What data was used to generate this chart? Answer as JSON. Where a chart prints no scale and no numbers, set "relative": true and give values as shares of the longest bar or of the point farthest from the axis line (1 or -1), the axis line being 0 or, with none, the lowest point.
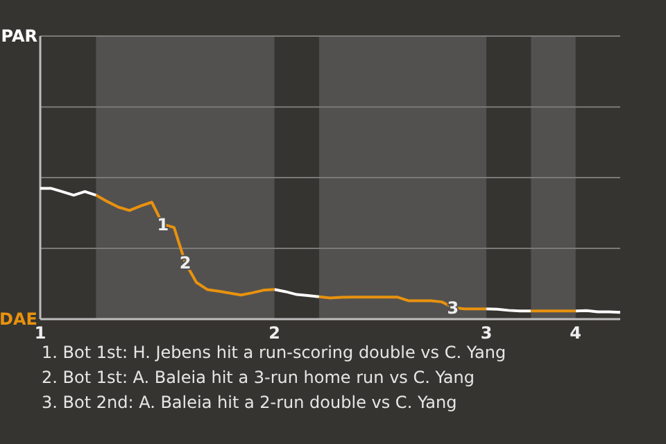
{
  "chart_data": {
    "type": "line",
    "relative": true,
    "categories": [
      "1",
      null,
      null,
      null,
      null,
      null,
      null,
      null,
      null,
      null,
      null,
      null,
      null,
      null,
      null,
      null,
      null,
      null,
      null,
      null,
      null,
      "2",
      null,
      null,
      null,
      null,
      null,
      null,
      null,
      null,
      null,
      null,
      null,
      null,
      null,
      null,
      null,
      null,
      null,
      null,
      "3",
      null,
      null,
      null,
      null,
      null,
      null,
      null,
      "4",
      null,
      null,
      null,
      null
    ],
    "series": [
      {
        "color": "#ffffff",
        "values": [
          1,
          1,
          0.974,
          0.948,
          0.976,
          0.948,
          null,
          null,
          null,
          null,
          null,
          null,
          null,
          null,
          null,
          null,
          null,
          null,
          null,
          null,
          null,
          0.227,
          0.21,
          0.188,
          0.18,
          0.171,
          null,
          null,
          null,
          null,
          null,
          null,
          null,
          null,
          null,
          null,
          null,
          null,
          null,
          null,
          0.078,
          0.076,
          0.067,
          0.063,
          0.063,
          null,
          null,
          null,
          0.063,
          0.065,
          0.056,
          0.056,
          0.052
        ]
      },
      {
        "color": "#e8920e",
        "values": [
          null,
          null,
          null,
          null,
          null,
          0.948,
          0.9,
          0.857,
          0.831,
          0.866,
          0.894,
          0.725,
          0.701,
          0.433,
          0.281,
          0.225,
          0.214,
          0.199,
          0.184,
          0.201,
          0.221,
          0.227,
          null,
          null,
          null,
          0.171,
          0.162,
          0.167,
          0.169,
          0.169,
          0.169,
          0.169,
          0.169,
          0.141,
          0.141,
          0.141,
          0.132,
          0.089,
          0.078,
          0.078,
          0.078,
          null,
          null,
          null,
          0.063,
          0.063,
          0.063,
          0.063,
          0.063,
          null,
          null,
          null,
          null
        ]
      }
    ],
    "ref_lines": [
      {
        "axis": "y",
        "value": 0.541,
        "color": "#7a7a78"
      },
      {
        "axis": "y",
        "value": 1.082,
        "color": "#7a7a78"
      },
      {
        "axis": "y",
        "value": 1.623,
        "color": "#7a7a78"
      },
      {
        "axis": "y",
        "value": 2.165,
        "color": "#7a7a78"
      }
    ],
    "annotations": [
      "PAR",
      "DAE",
      {
        "text": "1",
        "y": 0.725
      },
      {
        "text": "2",
        "y": 0.433
      },
      {
        "text": "3",
        "y": 0.089
      },
      "1. Bot 1st: H. Jebens hit a run-scoring double vs C. Yang",
      "2. Bot 1st: A. Baleia hit a 3-run home run vs C. Yang",
      "3. Bot 2nd: A. Baleia hit a 2-run double vs C. Yang"
    ]
  }
}
